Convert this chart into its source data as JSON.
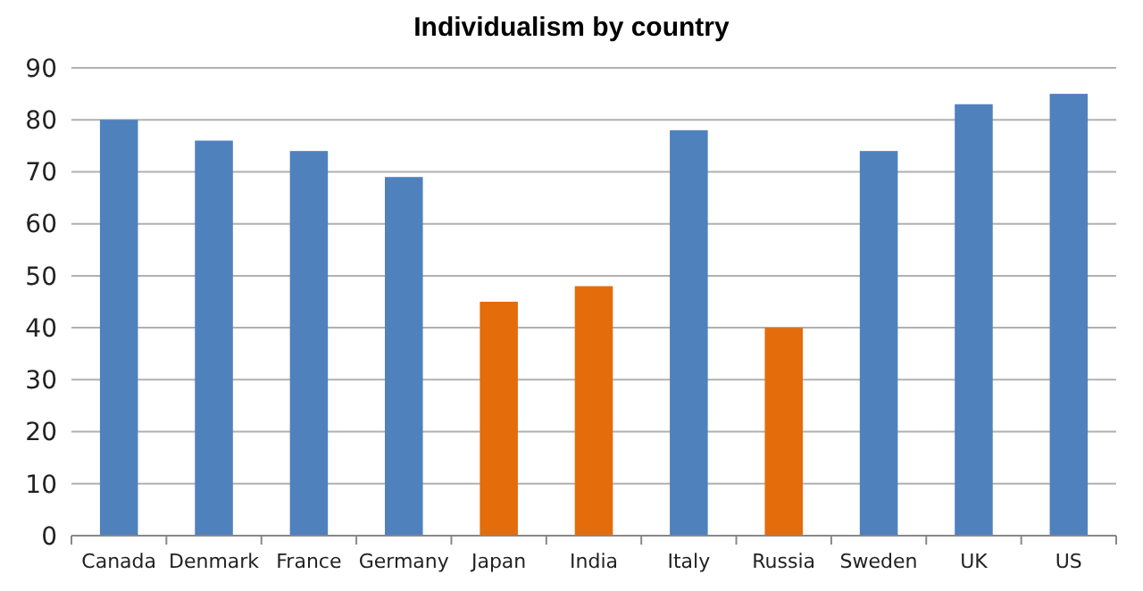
{
  "chart_data": {
    "type": "bar",
    "title": "Individualism by country",
    "categories": [
      "Canada",
      "Denmark",
      "France",
      "Germany",
      "Japan",
      "India",
      "Italy",
      "Russia",
      "Sweden",
      "UK",
      "US"
    ],
    "values": [
      80,
      76,
      74,
      69,
      45,
      48,
      78,
      40,
      74,
      83,
      85
    ],
    "colors": [
      "#4f81bd",
      "#4f81bd",
      "#4f81bd",
      "#4f81bd",
      "#e46c0a",
      "#e46c0a",
      "#4f81bd",
      "#e46c0a",
      "#4f81bd",
      "#4f81bd",
      "#4f81bd"
    ],
    "ylim": [
      0,
      90
    ],
    "yticks": [
      0,
      10,
      20,
      30,
      40,
      50,
      60,
      70,
      80,
      90
    ],
    "grid": "y"
  }
}
